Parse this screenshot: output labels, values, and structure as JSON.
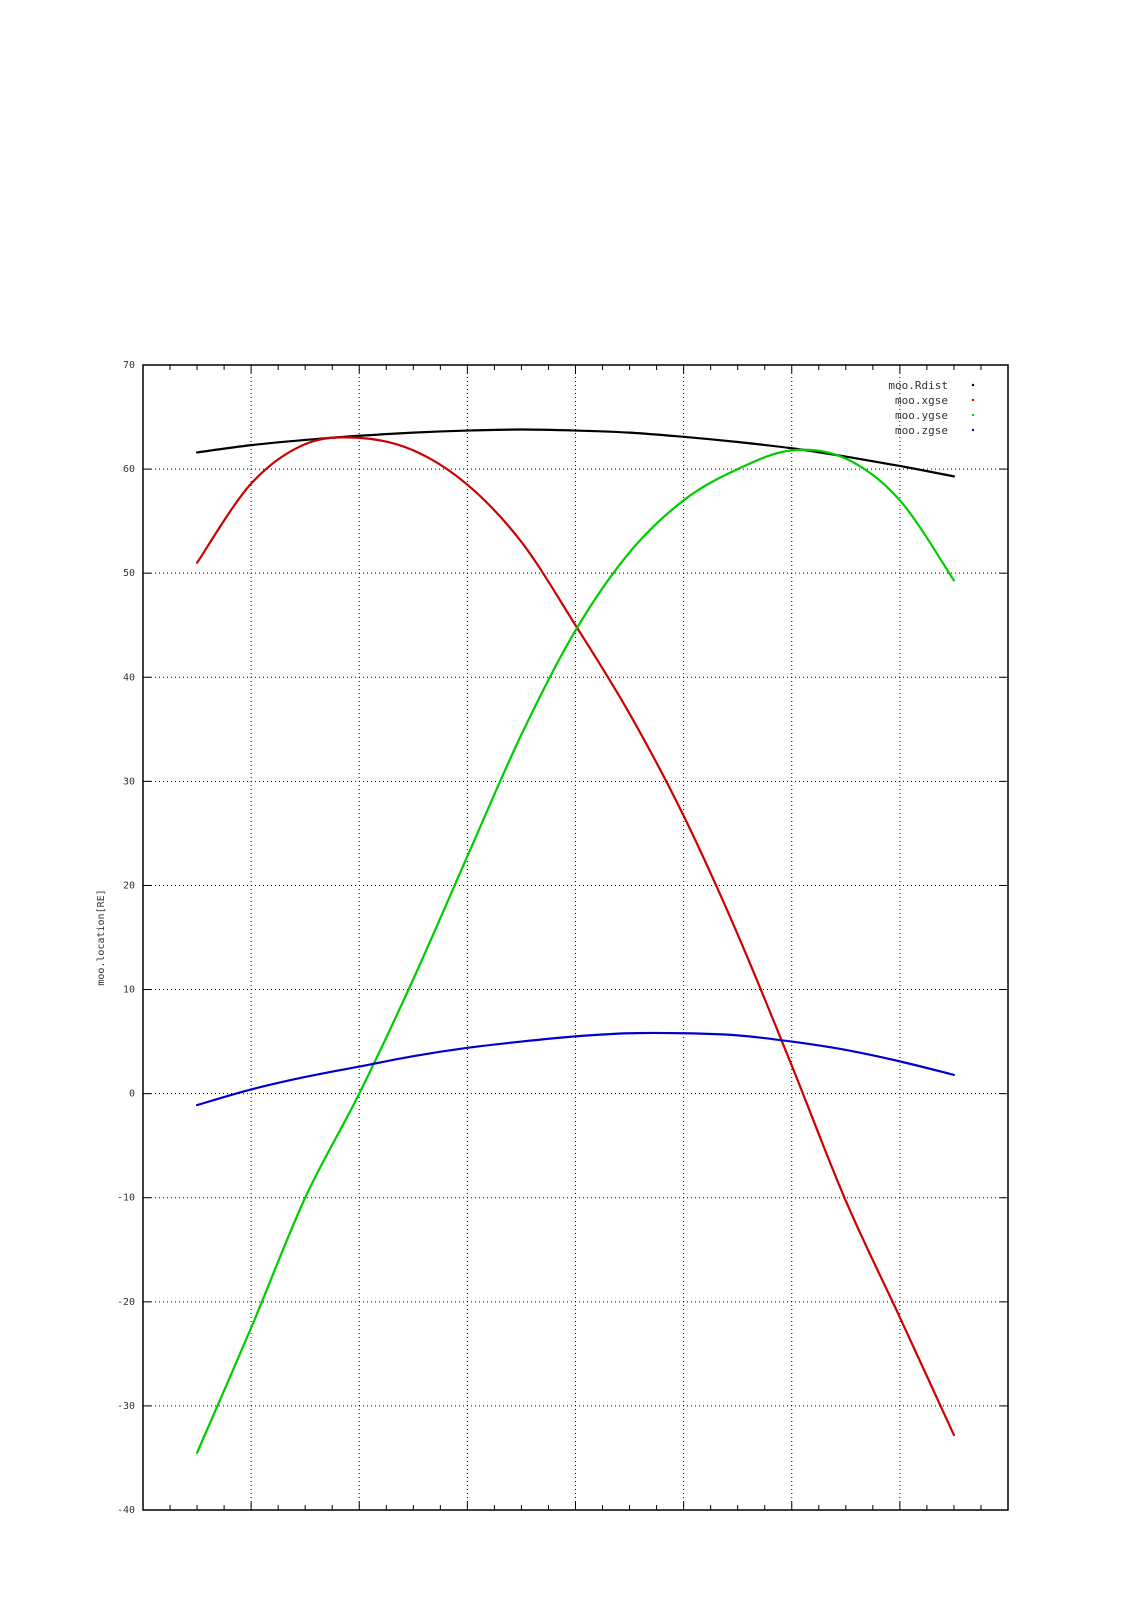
{
  "chart_data": {
    "type": "line",
    "title": "",
    "xlabel": "",
    "ylabel": "moo.location[RE]",
    "xlim": [
      0,
      8
    ],
    "ylim": [
      -40,
      70
    ],
    "yticks": [
      -40,
      -30,
      -20,
      -10,
      0,
      10,
      20,
      30,
      40,
      50,
      60,
      70
    ],
    "grid": true,
    "legend_position": "top-right",
    "x": [
      0.5,
      1.0,
      1.5,
      2.0,
      2.5,
      3.0,
      3.5,
      4.0,
      4.5,
      5.0,
      5.5,
      6.0,
      6.5,
      7.0,
      7.5
    ],
    "series": [
      {
        "name": "moo.Rdist",
        "color": "#000000",
        "values": [
          61.6,
          62.3,
          62.8,
          63.2,
          63.5,
          63.7,
          63.8,
          63.7,
          63.5,
          63.1,
          62.6,
          62.0,
          61.2,
          60.3,
          59.3
        ]
      },
      {
        "name": "moo.xgse",
        "color": "#cc0000",
        "values": [
          51.0,
          58.6,
          62.4,
          63.0,
          61.8,
          58.5,
          53.0,
          45.0,
          36.5,
          26.7,
          15.3,
          2.7,
          -10.3,
          -21.5,
          -32.8
        ]
      },
      {
        "name": "moo.ygse",
        "color": "#00cc00",
        "values": [
          -34.5,
          -22.5,
          -10.0,
          0.0,
          11.0,
          22.8,
          34.5,
          44.5,
          52.0,
          57.0,
          60.0,
          61.8,
          61.0,
          57.0,
          49.3
        ]
      },
      {
        "name": "moo.zgse",
        "color": "#0000cc",
        "values": [
          -1.1,
          0.4,
          1.6,
          2.6,
          3.6,
          4.4,
          5.0,
          5.5,
          5.8,
          5.8,
          5.6,
          5.0,
          4.2,
          3.1,
          1.8
        ]
      }
    ]
  }
}
